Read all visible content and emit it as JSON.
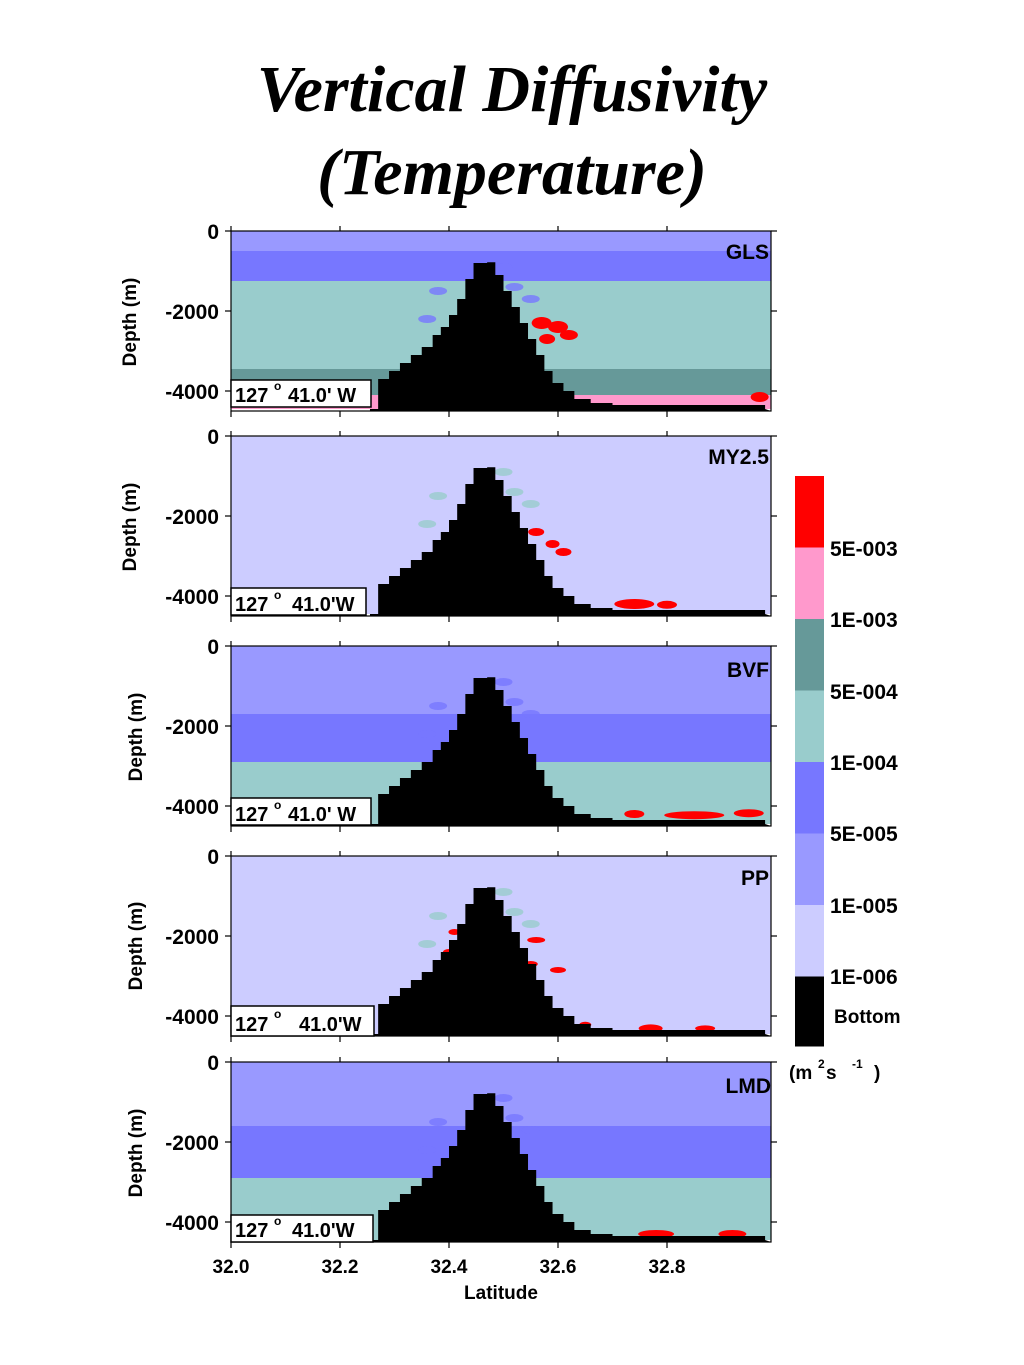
{
  "title_line1": "Vertical Diffusivity",
  "title_line2": "(Temperature)",
  "chart_data": {
    "type": "heatmap",
    "description_of_axes": "",
    "xlabel": "Latitude",
    "ylabel": "Depth (m)",
    "xlim": [
      32.0,
      32.98
    ],
    "ylim": [
      -4450,
      0
    ],
    "x_ticks": [
      "32.0",
      "32.2",
      "32.4",
      "32.6",
      "32.8"
    ],
    "x_tick_values": [
      32.0,
      32.2,
      32.4,
      32.6,
      32.8
    ],
    "y_ticks": [
      "0",
      "-2000",
      "-4000"
    ],
    "y_tick_values": [
      0,
      -2000,
      -4000
    ],
    "longitude_label": "127° 41.0' W",
    "panels": [
      {
        "name": "GLS",
        "location": "127o 41.0' W"
      },
      {
        "name": "MY2.5",
        "location": "127o 41.0'W"
      },
      {
        "name": "BVF",
        "location": "127o 41.0' W"
      },
      {
        "name": "PP",
        "location": "127o 41.0'W"
      },
      {
        "name": "LMD",
        "location": "127o 41.0'W"
      }
    ],
    "colorbar": {
      "units": "(m2 s -1 )",
      "labels": [
        "5E-003",
        "1E-003",
        "5E-004",
        "1E-004",
        "5E-005",
        "1E-005",
        "1E-006",
        "Bottom"
      ],
      "colors": [
        "#ff0000",
        "#ff99cc",
        "#669999",
        "#99cccc",
        "#7777ff",
        "#9999ff",
        "#ccccff",
        "#000000"
      ]
    }
  },
  "panel_labels": {
    "p0": "GLS",
    "p1": "MY2.5",
    "p2": "BVF",
    "p3": "PP",
    "p4": "LMD",
    "loc0": "127",
    "loc0b": "41.0' W",
    "loc1": "127",
    "loc1b": "41.0'W",
    "loc2": "127",
    "loc2b": "41.0' W",
    "loc3": "127",
    "loc3b": "41.0'W",
    "loc4": "127",
    "loc4b": "41.0'W",
    "deg": "o"
  },
  "colorbar_text": {
    "l0": "5E-003",
    "l1": "1E-003",
    "l2": "5E-004",
    "l3": "1E-004",
    "l4": "5E-005",
    "l5": "1E-005",
    "l6": "1E-006",
    "l7": "Bottom",
    "units_m": "(m",
    "units_2": "2",
    "units_s": " s",
    "units_exp": "-1",
    "units_close": ")"
  },
  "axis_text": {
    "ylabel": "Depth (m)",
    "xlabel": "Latitude",
    "y0": "0",
    "y1": "-2000",
    "y2": "-4000",
    "x0": "32.0",
    "x1": "32.2",
    "x2": "32.4",
    "x3": "32.6",
    "x4": "32.8"
  }
}
